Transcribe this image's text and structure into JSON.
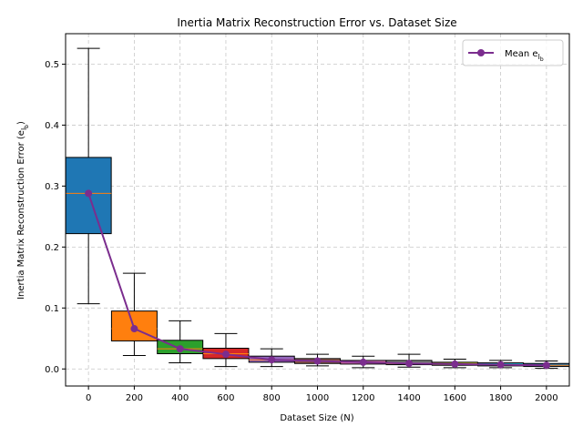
{
  "chart_data": {
    "type": "box",
    "title": "Inertia Matrix Reconstruction Error vs. Dataset Size",
    "xlabel": "Dataset Size (N)",
    "ylabel": "Inertia Matrix Reconstruction Error (e",
    "ylabel_sub": "l",
    "ylabel_subsub": "b",
    "ylabel_close": ")",
    "categories": [
      "0",
      "200",
      "400",
      "600",
      "800",
      "1000",
      "1200",
      "1400",
      "1600",
      "1800",
      "2000"
    ],
    "x": [
      0,
      200,
      400,
      600,
      800,
      1000,
      1200,
      1400,
      1600,
      1800,
      2000
    ],
    "xlim": [
      -100,
      2100
    ],
    "ylim": [
      -0.028,
      0.55
    ],
    "yticks": [
      0.0,
      0.1,
      0.2,
      0.3,
      0.4,
      0.5
    ],
    "yticks_labels": [
      "0.0",
      "0.1",
      "0.2",
      "0.3",
      "0.4",
      "0.5"
    ],
    "grid": true,
    "box_colors": [
      "#1f77b4",
      "#ff7f0e",
      "#2ca02c",
      "#d62728",
      "#9467bd",
      "#8c564b",
      "#e377c2",
      "#7f7f7f",
      "#bcbd22",
      "#17becf",
      "#1f77b4"
    ],
    "median_color": "#ff7f0e",
    "boxes": [
      {
        "whislo": 0.107,
        "q1": 0.222,
        "med": 0.288,
        "q3": 0.347,
        "whishi": 0.526
      },
      {
        "whislo": 0.022,
        "q1": 0.046,
        "med": 0.066,
        "q3": 0.095,
        "whishi": 0.157
      },
      {
        "whislo": 0.01,
        "q1": 0.025,
        "med": 0.033,
        "q3": 0.047,
        "whishi": 0.079
      },
      {
        "whislo": 0.004,
        "q1": 0.017,
        "med": 0.025,
        "q3": 0.034,
        "whishi": 0.058
      },
      {
        "whislo": 0.004,
        "q1": 0.011,
        "med": 0.015,
        "q3": 0.021,
        "whishi": 0.033
      },
      {
        "whislo": 0.005,
        "q1": 0.009,
        "med": 0.013,
        "q3": 0.017,
        "whishi": 0.024
      },
      {
        "whislo": 0.002,
        "q1": 0.008,
        "med": 0.011,
        "q3": 0.014,
        "whishi": 0.021
      },
      {
        "whislo": 0.003,
        "q1": 0.007,
        "med": 0.009,
        "q3": 0.014,
        "whishi": 0.024
      },
      {
        "whislo": 0.002,
        "q1": 0.006,
        "med": 0.008,
        "q3": 0.011,
        "whishi": 0.016
      },
      {
        "whislo": 0.002,
        "q1": 0.005,
        "med": 0.007,
        "q3": 0.01,
        "whishi": 0.014
      },
      {
        "whislo": 0.001,
        "q1": 0.004,
        "med": 0.006,
        "q3": 0.009,
        "whishi": 0.013
      }
    ],
    "series": [
      {
        "name": "Mean e",
        "name_sub": "l",
        "name_subsub": "b",
        "type": "line",
        "color": "#7b2d8e",
        "marker_color": "#7b2d8e",
        "values": [
          0.288,
          0.066,
          0.033,
          0.024,
          0.015,
          0.013,
          0.011,
          0.009,
          0.008,
          0.007,
          0.006
        ]
      }
    ],
    "legend_position": "upper right"
  }
}
